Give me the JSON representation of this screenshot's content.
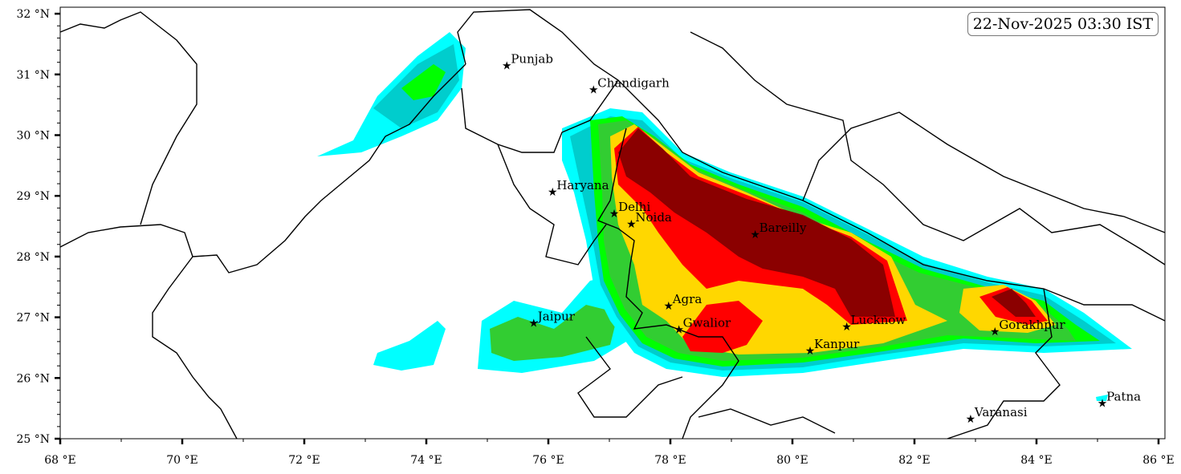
{
  "timestamp": "22-Nov-2025 03:30 IST",
  "colors": {
    "light_cyan": "#00ffff",
    "dark_cyan": "#00cdcd",
    "bright_green": "#00ff00",
    "green": "#32cd32",
    "gold": "#ffd700",
    "red": "#ff0000",
    "dark_red": "#8b0000",
    "border": "#000000"
  },
  "axes": {
    "lon_ticks": [
      "68 °E",
      "70 °E",
      "72 °E",
      "74 °E",
      "76 °E",
      "78 °E",
      "80 °E",
      "82 °E",
      "84 °E",
      "86 °E"
    ],
    "lat_ticks": [
      "25 °N",
      "26 °N",
      "27 °N",
      "28 °N",
      "29 °N",
      "30 °N",
      "31 °N",
      "32 °N"
    ],
    "lon_range": [
      68,
      86.2
    ],
    "lat_range": [
      25,
      32
    ]
  },
  "cities": [
    {
      "name": "Punjab",
      "lon": 75.32,
      "lat": 31.15
    },
    {
      "name": "Chandigarh",
      "lon": 76.74,
      "lat": 30.75
    },
    {
      "name": "Haryana",
      "lon": 76.07,
      "lat": 29.07
    },
    {
      "name": "Delhi",
      "lon": 77.08,
      "lat": 28.71
    },
    {
      "name": "Noida",
      "lon": 77.36,
      "lat": 28.54
    },
    {
      "name": "Bareilly",
      "lon": 79.39,
      "lat": 28.37
    },
    {
      "name": "Agra",
      "lon": 77.97,
      "lat": 27.19
    },
    {
      "name": "Gwalior",
      "lon": 78.14,
      "lat": 26.8
    },
    {
      "name": "Jaipur",
      "lon": 75.76,
      "lat": 26.91
    },
    {
      "name": "Kanpur",
      "lon": 80.29,
      "lat": 26.45
    },
    {
      "name": "Lucknow",
      "lon": 80.89,
      "lat": 26.85
    },
    {
      "name": "Gorakhpur",
      "lon": 83.32,
      "lat": 26.77
    },
    {
      "name": "Varanasi",
      "lon": 82.92,
      "lat": 25.33
    },
    {
      "name": "Patna",
      "lon": 85.08,
      "lat": 25.59
    }
  ]
}
